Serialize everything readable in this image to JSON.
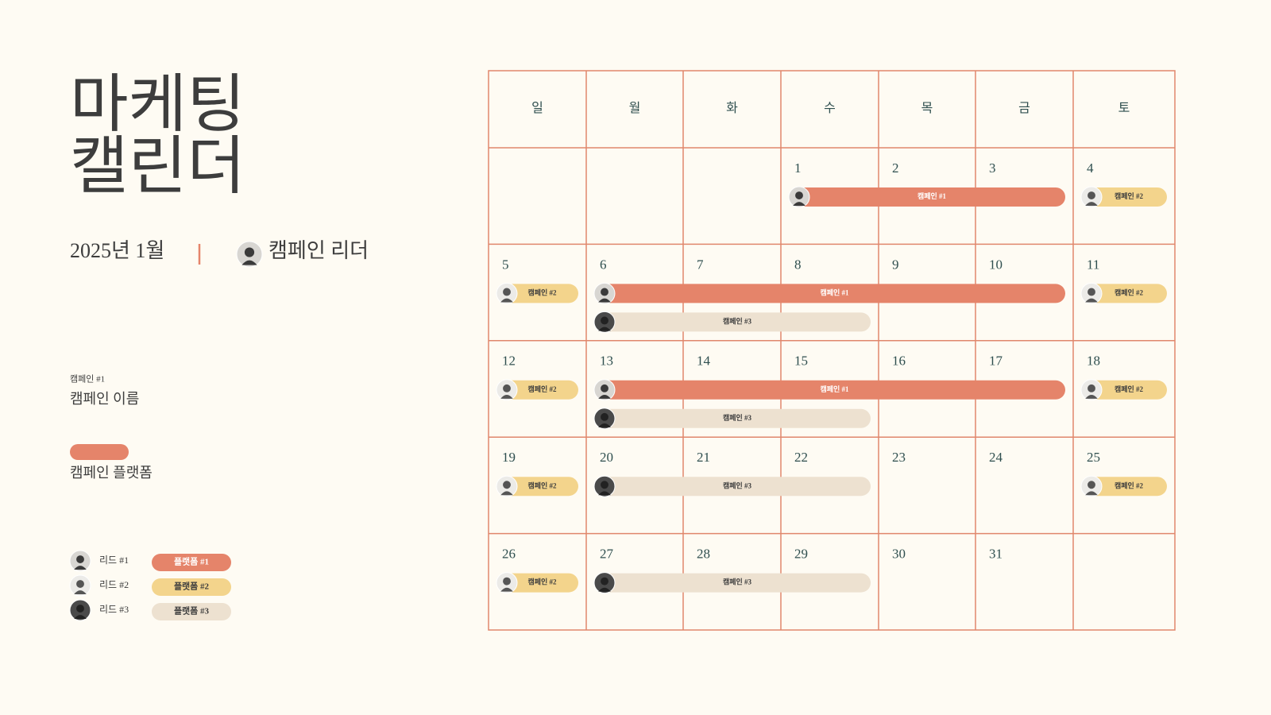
{
  "title": [
    "마케팅",
    "캘린더"
  ],
  "month": "2025년 1월",
  "leader": "캠페인 리더",
  "sample": {
    "tag": "캠페인 #1",
    "name": "캠페인 이름",
    "platform": "캠페인 플랫폼"
  },
  "leads": [
    "리드 #1",
    "리드 #2",
    "리드 #3"
  ],
  "platforms": [
    {
      "label": "플랫폼 #1",
      "color": "#e5846a",
      "text_color": "#ffffff"
    },
    {
      "label": "플랫폼 #2",
      "color": "#f3d48c",
      "text_color": "#3d3d3d"
    },
    {
      "label": "플랫폼 #3",
      "color": "#ede1d0",
      "text_color": "#3d3d3d"
    }
  ],
  "calendar": {
    "weekdays": [
      "일",
      "월",
      "화",
      "수",
      "목",
      "금",
      "토"
    ],
    "weeks": [
      [
        null,
        null,
        null,
        1,
        2,
        3,
        4
      ],
      [
        5,
        6,
        7,
        8,
        9,
        10,
        11
      ],
      [
        12,
        13,
        14,
        15,
        16,
        17,
        18
      ],
      [
        19,
        20,
        21,
        22,
        23,
        24,
        25
      ],
      [
        26,
        27,
        28,
        29,
        30,
        31,
        null
      ]
    ],
    "campaigns": [
      {
        "label": "캠페인 #1",
        "spans": [
          [
            1,
            3
          ],
          [
            6,
            10
          ],
          [
            13,
            17
          ]
        ]
      },
      {
        "label": "캠페인 #2",
        "spans": [
          [
            4,
            4
          ],
          [
            5,
            5
          ],
          [
            11,
            11
          ],
          [
            12,
            12
          ],
          [
            18,
            18
          ],
          [
            19,
            19
          ],
          [
            25,
            25
          ],
          [
            26,
            26
          ]
        ]
      },
      {
        "label": "캠페인 #3",
        "spans": [
          [
            6,
            8
          ],
          [
            13,
            15
          ],
          [
            20,
            22
          ],
          [
            27,
            29
          ]
        ]
      }
    ]
  }
}
